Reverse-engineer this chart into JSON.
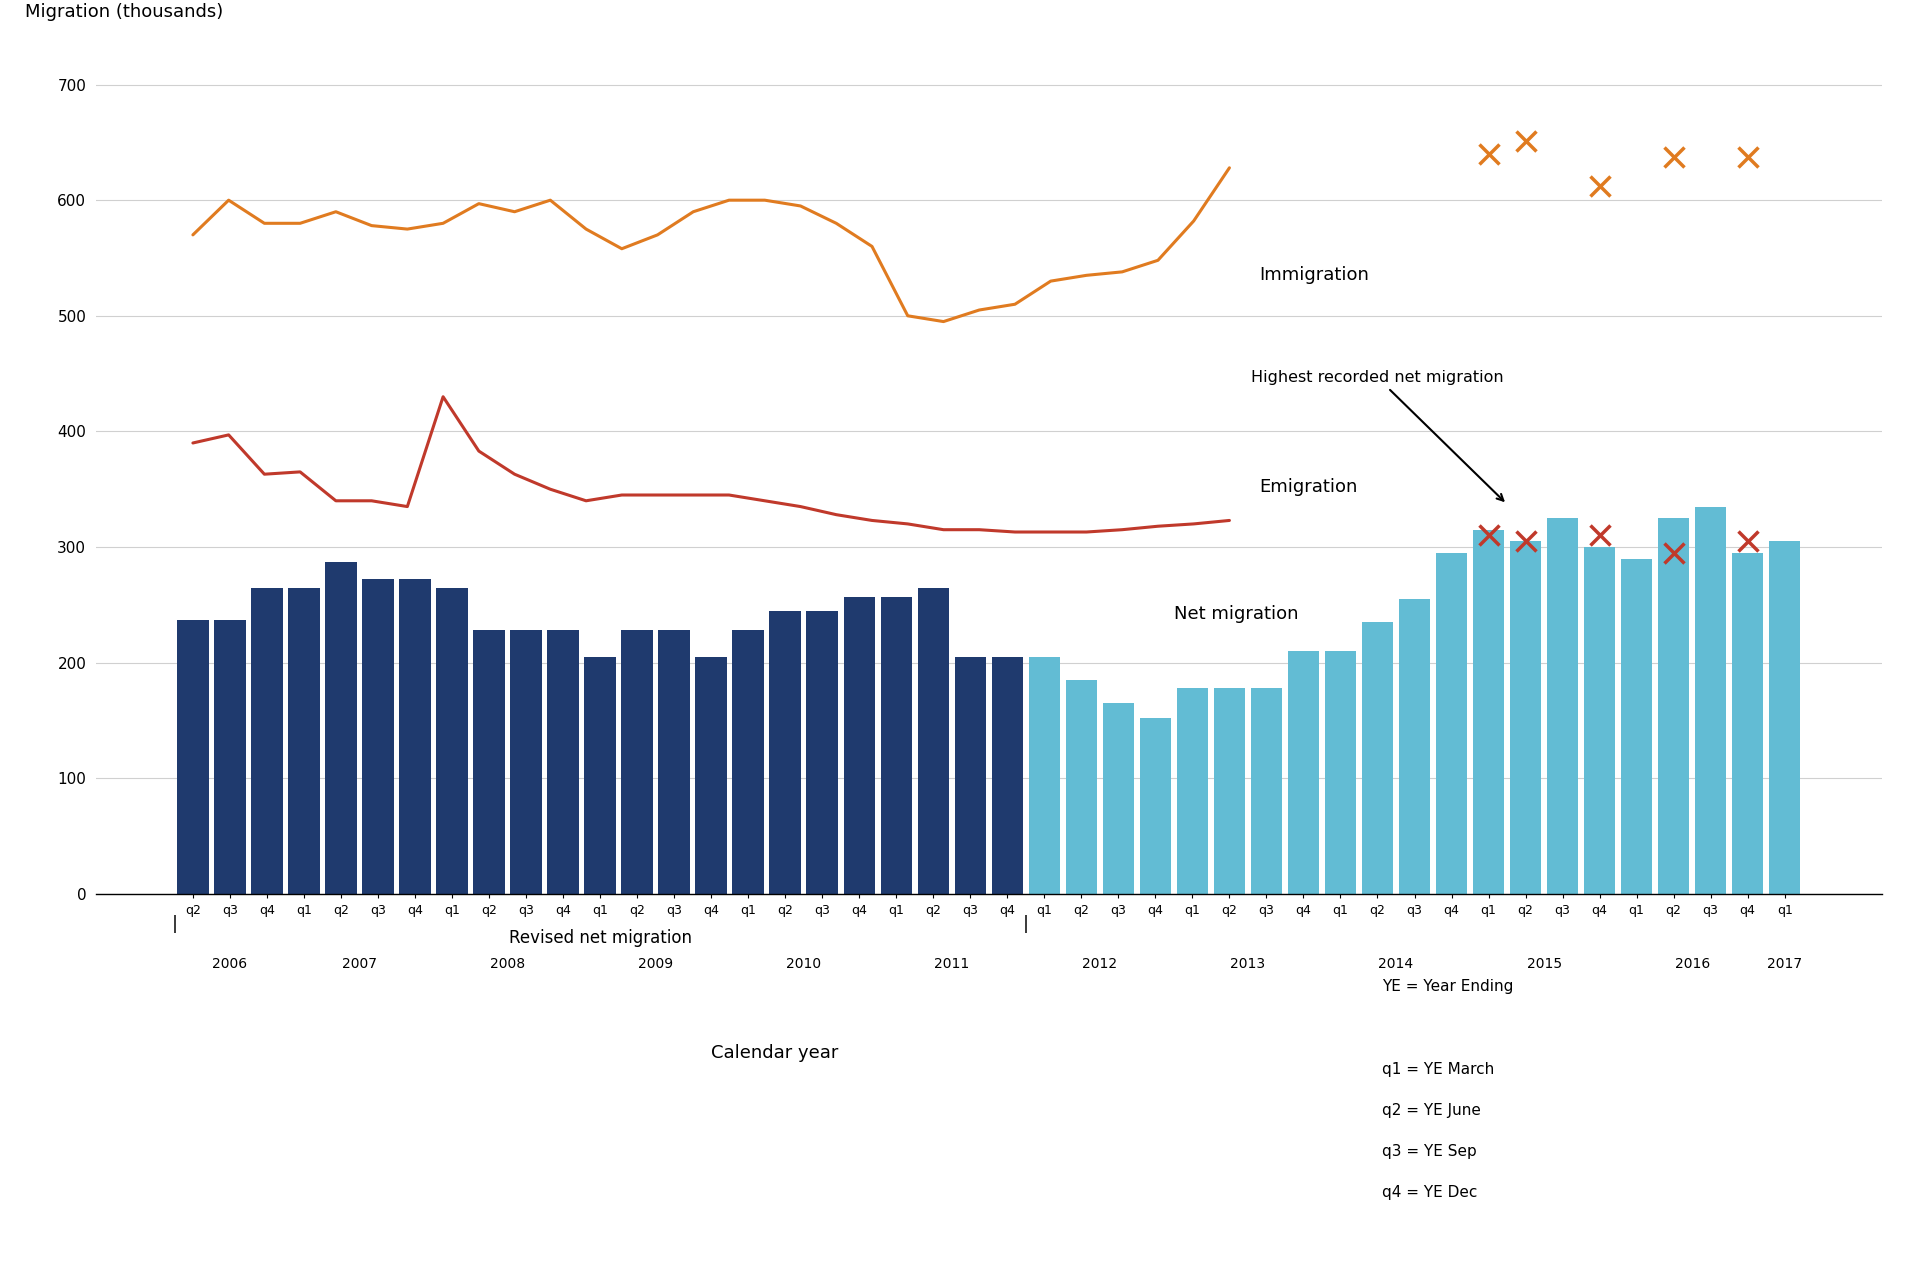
{
  "ylabel": "Migration (thousands)",
  "xlabel": "Calendar year",
  "background_color": "#ffffff",
  "dark_bar_values": [
    237,
    237,
    265,
    265,
    287,
    272,
    272,
    265,
    228,
    228,
    228,
    205,
    228,
    228,
    205,
    228,
    245,
    245,
    257,
    257,
    265,
    205,
    205
  ],
  "light_bar_values": [
    205,
    185,
    165,
    152,
    178,
    178,
    178,
    210,
    210,
    235,
    255,
    295,
    315,
    305,
    325,
    300,
    290,
    325,
    335,
    295,
    305
  ],
  "dark_bar_color": "#1f3a6e",
  "light_bar_color": "#62bcd4",
  "immigration_line_y": [
    570,
    600,
    580,
    580,
    590,
    578,
    575,
    580,
    597,
    590,
    600,
    575,
    558,
    570,
    590,
    600,
    600,
    595,
    580,
    560,
    500,
    495,
    505,
    510,
    530,
    535,
    538,
    548,
    582,
    628
  ],
  "immigration_xm_x_offsets": [
    0,
    1,
    3,
    5,
    7
  ],
  "immigration_xm_y": [
    640,
    651,
    612,
    637,
    637
  ],
  "immigration_color": "#e07b20",
  "emigration_line_y": [
    390,
    397,
    363,
    365,
    340,
    340,
    335,
    430,
    383,
    363,
    350,
    340,
    345,
    345,
    345,
    345,
    340,
    335,
    328,
    323,
    320,
    315,
    315,
    313,
    313,
    313,
    315,
    318,
    320,
    323
  ],
  "emigration_xm_x_offsets": [
    0,
    1,
    3,
    5,
    7
  ],
  "emigration_xm_y": [
    310,
    305,
    310,
    295,
    305
  ],
  "emigration_color": "#c0392b",
  "ylim": [
    0,
    740
  ],
  "yticks": [
    0,
    100,
    200,
    300,
    400,
    500,
    600,
    700
  ],
  "grid_color": "#d0d0d0",
  "notes_line1": "YE = Year Ending",
  "notes_line2": "q1 = YE March",
  "notes_line3": "q2 = YE June",
  "notes_line4": "q3 = YE Sep",
  "notes_line5": "q4 = YE Dec"
}
